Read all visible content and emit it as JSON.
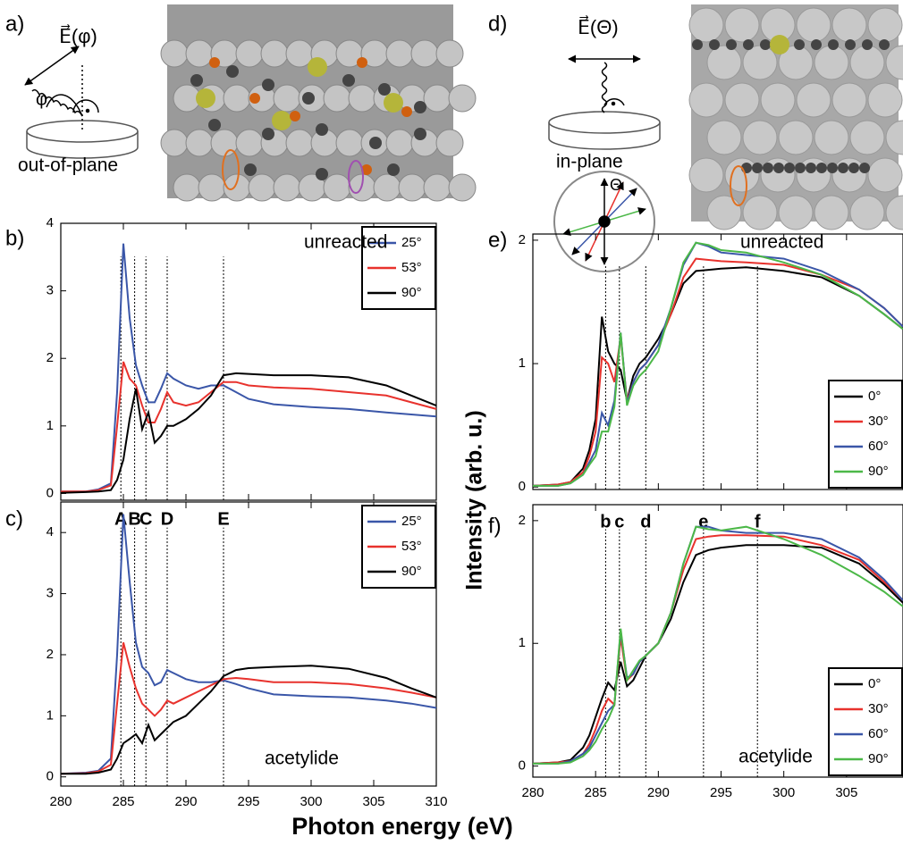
{
  "panels": {
    "a": "a)",
    "b": "b)",
    "c": "c)",
    "d": "d)",
    "e": "e)",
    "f": "f)"
  },
  "diagram_a": {
    "field": "E⃗(φ)",
    "angle": "φ",
    "caption": "out-of-plane"
  },
  "diagram_d": {
    "field": "E⃗(Θ)",
    "angle": "Θ",
    "caption": "in-plane"
  },
  "shared": {
    "xlabel": "Photon energy (eV)",
    "ylabel": "Intensity (arb. u.)"
  },
  "chart_data": [
    {
      "type": "line",
      "annotation": "unreacted",
      "legend": "top-right",
      "xtick_labels": false,
      "x": [
        280,
        282,
        283,
        284,
        284.5,
        285,
        285.5,
        286,
        286.5,
        287,
        287.5,
        288,
        288.5,
        289,
        290,
        291,
        292,
        293,
        294,
        295,
        297,
        300,
        303,
        306,
        308,
        310
      ],
      "xlim": [
        280,
        310
      ],
      "xticks": [
        280,
        285,
        290,
        295,
        300,
        305,
        310
      ],
      "ylim": [
        -0.1,
        4
      ],
      "yticks": [
        0,
        1,
        2,
        3,
        4
      ],
      "markers": [
        284.8,
        285.9,
        286.8,
        288.5,
        293
      ],
      "series": [
        {
          "name": "25°",
          "color": "#3a56a8",
          "values": [
            0.03,
            0.03,
            0.06,
            0.15,
            1.5,
            3.7,
            2.6,
            1.9,
            1.6,
            1.35,
            1.35,
            1.55,
            1.78,
            1.7,
            1.6,
            1.55,
            1.6,
            1.6,
            1.5,
            1.4,
            1.32,
            1.28,
            1.25,
            1.2,
            1.17,
            1.14
          ]
        },
        {
          "name": "53°",
          "color": "#e8322d",
          "values": [
            0.03,
            0.03,
            0.05,
            0.12,
            1.0,
            1.95,
            1.7,
            1.6,
            1.3,
            1.05,
            1.05,
            1.25,
            1.5,
            1.35,
            1.3,
            1.35,
            1.5,
            1.65,
            1.65,
            1.6,
            1.57,
            1.55,
            1.5,
            1.45,
            1.35,
            1.25
          ]
        },
        {
          "name": "90°",
          "color": "#000000",
          "values": [
            0.01,
            0.02,
            0.03,
            0.05,
            0.2,
            0.5,
            1.1,
            1.55,
            0.95,
            1.2,
            0.75,
            0.85,
            1.0,
            1.0,
            1.1,
            1.25,
            1.45,
            1.75,
            1.78,
            1.77,
            1.75,
            1.75,
            1.72,
            1.6,
            1.45,
            1.3
          ]
        }
      ]
    },
    {
      "type": "line",
      "annotation": "acetylide",
      "legend": "top-right",
      "xtick_labels": true,
      "x": [
        280,
        282,
        283,
        284,
        284.5,
        285,
        285.5,
        286,
        286.5,
        287,
        287.5,
        288,
        288.5,
        289,
        290,
        291,
        292,
        293,
        294,
        295,
        297,
        300,
        303,
        306,
        308,
        310
      ],
      "xlim": [
        280,
        310
      ],
      "xticks": [
        280,
        285,
        290,
        295,
        300,
        305,
        310
      ],
      "ylim": [
        -0.15,
        4.5
      ],
      "yticks": [
        0,
        1,
        2,
        3,
        4
      ],
      "markers": [
        {
          "x": 284.8,
          "label": "A"
        },
        {
          "x": 285.9,
          "label": "B"
        },
        {
          "x": 286.8,
          "label": "C"
        },
        {
          "x": 288.5,
          "label": "D"
        },
        {
          "x": 293,
          "label": "E"
        }
      ],
      "series": [
        {
          "name": "25°",
          "color": "#3a56a8",
          "values": [
            0.05,
            0.07,
            0.1,
            0.3,
            2.0,
            4.3,
            3.2,
            2.2,
            1.8,
            1.7,
            1.5,
            1.55,
            1.75,
            1.7,
            1.6,
            1.55,
            1.55,
            1.58,
            1.52,
            1.45,
            1.35,
            1.32,
            1.3,
            1.25,
            1.2,
            1.13
          ]
        },
        {
          "name": "53°",
          "color": "#e8322d",
          "values": [
            0.05,
            0.06,
            0.09,
            0.2,
            1.2,
            2.2,
            1.8,
            1.45,
            1.2,
            1.1,
            1.0,
            1.1,
            1.25,
            1.2,
            1.3,
            1.4,
            1.5,
            1.6,
            1.62,
            1.6,
            1.55,
            1.55,
            1.52,
            1.45,
            1.38,
            1.3
          ]
        },
        {
          "name": "90°",
          "color": "#000000",
          "values": [
            0.05,
            0.05,
            0.07,
            0.12,
            0.3,
            0.55,
            0.62,
            0.7,
            0.55,
            0.85,
            0.6,
            0.7,
            0.8,
            0.9,
            1.0,
            1.2,
            1.4,
            1.65,
            1.75,
            1.78,
            1.8,
            1.82,
            1.77,
            1.62,
            1.45,
            1.3
          ]
        }
      ]
    },
    {
      "type": "line",
      "annotation": "unreacted",
      "legend": "bottom-right",
      "xtick_labels": false,
      "x": [
        280,
        282,
        283,
        284,
        284.5,
        285,
        285.5,
        286,
        286.5,
        287,
        287.5,
        288,
        288.5,
        289,
        290,
        291,
        292,
        293,
        294,
        295,
        297,
        300,
        303,
        306,
        308,
        309.5
      ],
      "xlim": [
        280,
        309.5
      ],
      "xticks": [
        280,
        285,
        290,
        295,
        300,
        305
      ],
      "ylim": [
        -0.02,
        2.05
      ],
      "yticks": [
        0,
        1,
        2
      ],
      "markers": [
        285.8,
        286.9,
        289,
        293.6,
        297.9
      ],
      "series": [
        {
          "name": "0°",
          "color": "#000000",
          "values": [
            0.01,
            0.02,
            0.04,
            0.15,
            0.3,
            0.55,
            1.38,
            1.1,
            1.0,
            0.95,
            0.7,
            0.9,
            1.0,
            1.05,
            1.2,
            1.4,
            1.65,
            1.75,
            1.76,
            1.77,
            1.78,
            1.75,
            1.7,
            1.55,
            1.4,
            1.28
          ]
        },
        {
          "name": "30°",
          "color": "#e8322d",
          "values": [
            0.01,
            0.02,
            0.04,
            0.12,
            0.25,
            0.45,
            1.05,
            1.0,
            0.85,
            1.22,
            0.7,
            0.85,
            0.95,
            1.0,
            1.15,
            1.4,
            1.7,
            1.85,
            1.84,
            1.83,
            1.82,
            1.8,
            1.72,
            1.6,
            1.45,
            1.3
          ]
        },
        {
          "name": "60°",
          "color": "#3a56a8",
          "values": [
            0.01,
            0.01,
            0.03,
            0.1,
            0.2,
            0.3,
            0.6,
            0.5,
            0.7,
            1.25,
            0.68,
            0.85,
            0.95,
            1.0,
            1.15,
            1.45,
            1.8,
            1.98,
            1.95,
            1.9,
            1.88,
            1.85,
            1.75,
            1.6,
            1.45,
            1.3
          ]
        },
        {
          "name": "90°",
          "color": "#4cb848",
          "values": [
            0.01,
            0.01,
            0.03,
            0.1,
            0.18,
            0.25,
            0.45,
            0.45,
            0.65,
            1.25,
            0.66,
            0.82,
            0.9,
            0.95,
            1.1,
            1.45,
            1.82,
            1.98,
            1.96,
            1.92,
            1.9,
            1.82,
            1.72,
            1.55,
            1.4,
            1.28
          ]
        }
      ]
    },
    {
      "type": "line",
      "annotation": "acetylide",
      "legend": "bottom-right",
      "xtick_labels": true,
      "x": [
        280,
        282,
        283,
        284,
        284.5,
        285,
        285.5,
        286,
        286.5,
        287,
        287.5,
        288,
        288.5,
        289,
        290,
        291,
        292,
        293,
        294,
        295,
        297,
        300,
        303,
        306,
        308,
        309.5
      ],
      "xlim": [
        280,
        309.5
      ],
      "xticks": [
        280,
        285,
        290,
        295,
        300,
        305
      ],
      "ylim": [
        -0.09,
        2.13
      ],
      "yticks": [
        0,
        1,
        2
      ],
      "markers": [
        {
          "x": 285.8,
          "label": "b"
        },
        {
          "x": 286.9,
          "label": "c"
        },
        {
          "x": 289,
          "label": "d"
        },
        {
          "x": 293.6,
          "label": "e"
        },
        {
          "x": 297.9,
          "label": "f"
        }
      ],
      "series": [
        {
          "name": "0°",
          "color": "#000000",
          "values": [
            0.02,
            0.03,
            0.05,
            0.15,
            0.25,
            0.4,
            0.55,
            0.68,
            0.62,
            0.85,
            0.65,
            0.7,
            0.8,
            0.9,
            1.0,
            1.2,
            1.5,
            1.72,
            1.76,
            1.78,
            1.8,
            1.8,
            1.78,
            1.65,
            1.48,
            1.33
          ]
        },
        {
          "name": "30°",
          "color": "#e8322d",
          "values": [
            0.02,
            0.03,
            0.04,
            0.1,
            0.18,
            0.3,
            0.45,
            0.55,
            0.5,
            1.05,
            0.7,
            0.75,
            0.85,
            0.9,
            1.0,
            1.25,
            1.6,
            1.85,
            1.87,
            1.88,
            1.88,
            1.87,
            1.8,
            1.68,
            1.5,
            1.35
          ]
        },
        {
          "name": "60°",
          "color": "#3a56a8",
          "values": [
            0.02,
            0.02,
            0.04,
            0.1,
            0.15,
            0.25,
            0.35,
            0.45,
            0.5,
            1.1,
            0.72,
            0.75,
            0.85,
            0.9,
            1.0,
            1.25,
            1.65,
            1.95,
            1.95,
            1.92,
            1.9,
            1.9,
            1.85,
            1.7,
            1.52,
            1.35
          ]
        },
        {
          "name": "90°",
          "color": "#4cb848",
          "values": [
            0.02,
            0.02,
            0.03,
            0.08,
            0.13,
            0.2,
            0.3,
            0.38,
            0.5,
            1.12,
            0.7,
            0.78,
            0.86,
            0.9,
            1.0,
            1.25,
            1.65,
            1.95,
            1.93,
            1.92,
            1.95,
            1.85,
            1.72,
            1.55,
            1.42,
            1.3
          ]
        }
      ]
    }
  ]
}
